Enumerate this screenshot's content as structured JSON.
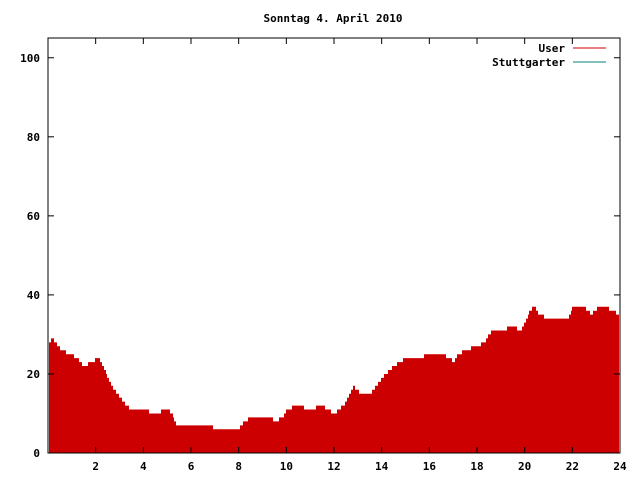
{
  "chart_data": {
    "type": "bar",
    "title": "Sonntag 4. April 2010",
    "xlabel": "",
    "ylabel": "",
    "xlim": [
      0,
      24
    ],
    "ylim": [
      0,
      105
    ],
    "x_ticks": [
      2,
      4,
      6,
      8,
      10,
      12,
      14,
      16,
      18,
      20,
      22,
      24
    ],
    "y_ticks": [
      0,
      20,
      40,
      60,
      80,
      100
    ],
    "legend_position": "top-right",
    "grid": false,
    "series": [
      {
        "name": "User",
        "color": "#cc0000",
        "anchors": [
          [
            0.05,
            28
          ],
          [
            0.2,
            29
          ],
          [
            0.4,
            27
          ],
          [
            0.6,
            26
          ],
          [
            0.9,
            25
          ],
          [
            1.2,
            24
          ],
          [
            1.5,
            22
          ],
          [
            1.8,
            23
          ],
          [
            2.1,
            24
          ],
          [
            2.35,
            21
          ],
          [
            2.55,
            18
          ],
          [
            2.75,
            16
          ],
          [
            3.0,
            14
          ],
          [
            3.25,
            12
          ],
          [
            3.5,
            11
          ],
          [
            4.0,
            11
          ],
          [
            4.5,
            10
          ],
          [
            5.0,
            11
          ],
          [
            5.2,
            10
          ],
          [
            5.4,
            7
          ],
          [
            6.0,
            7
          ],
          [
            6.8,
            7
          ],
          [
            7.0,
            6
          ],
          [
            8.0,
            6
          ],
          [
            8.2,
            8
          ],
          [
            8.5,
            9
          ],
          [
            9.0,
            9
          ],
          [
            9.3,
            9
          ],
          [
            9.5,
            8
          ],
          [
            9.8,
            9
          ],
          [
            10.0,
            11
          ],
          [
            10.5,
            12
          ],
          [
            11.0,
            11
          ],
          [
            11.5,
            12
          ],
          [
            12.0,
            10
          ],
          [
            12.2,
            11
          ],
          [
            12.5,
            13
          ],
          [
            12.8,
            17
          ],
          [
            13.1,
            15
          ],
          [
            13.5,
            15
          ],
          [
            14.0,
            19
          ],
          [
            14.5,
            22
          ],
          [
            15.0,
            24
          ],
          [
            15.5,
            24
          ],
          [
            16.0,
            25
          ],
          [
            16.5,
            25
          ],
          [
            16.9,
            24
          ],
          [
            17.0,
            23
          ],
          [
            17.2,
            25
          ],
          [
            17.5,
            26
          ],
          [
            18.0,
            27
          ],
          [
            18.3,
            28
          ],
          [
            18.6,
            31
          ],
          [
            19.0,
            31
          ],
          [
            19.5,
            32
          ],
          [
            19.8,
            31
          ],
          [
            20.0,
            33
          ],
          [
            20.2,
            36
          ],
          [
            20.4,
            37
          ],
          [
            20.6,
            35
          ],
          [
            21.0,
            34
          ],
          [
            21.5,
            34
          ],
          [
            21.8,
            34
          ],
          [
            22.0,
            37
          ],
          [
            22.5,
            37
          ],
          [
            22.8,
            35
          ],
          [
            23.1,
            37
          ],
          [
            23.4,
            37
          ],
          [
            23.7,
            36
          ],
          [
            23.95,
            35
          ]
        ]
      },
      {
        "name": "Stuttgarter",
        "color": "#008080",
        "anchors": []
      }
    ]
  }
}
